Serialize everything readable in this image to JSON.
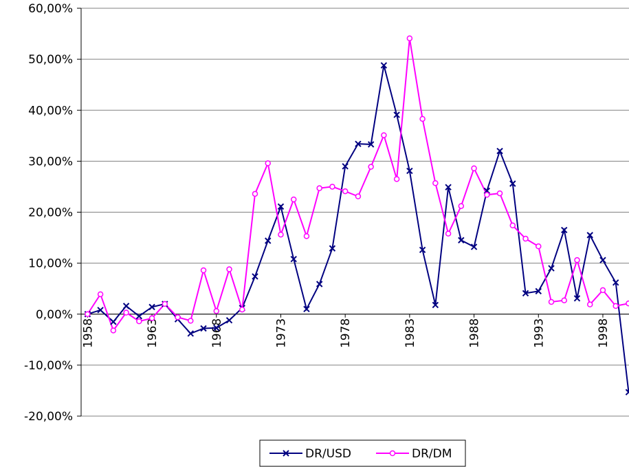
{
  "chart_data": {
    "type": "line",
    "x": [
      1958,
      1959,
      1960,
      1961,
      1962,
      1963,
      1964,
      1965,
      1966,
      1967,
      1968,
      1969,
      1970,
      1971,
      1972,
      1973,
      1974,
      1975,
      1976,
      1977,
      1978,
      1979,
      1980,
      1981,
      1982,
      1983,
      1984,
      1985,
      1986,
      1987,
      1988,
      1989,
      1990,
      1991,
      1992,
      1993,
      1994,
      1995,
      1996,
      1997,
      1998,
      1999,
      2000
    ],
    "xlim": [
      1957.5,
      2000.5
    ],
    "xticks": [
      1958,
      1963,
      1968,
      1973,
      1978,
      1983,
      1988,
      1993,
      1998
    ],
    "ylim": [
      -20,
      60
    ],
    "yticks": [
      {
        "value": -20,
        "label": "-20,00%"
      },
      {
        "value": -10,
        "label": "-10,00%"
      },
      {
        "value": 0,
        "label": "0,00%"
      },
      {
        "value": 10,
        "label": "10,00%"
      },
      {
        "value": 20,
        "label": "20,00%"
      },
      {
        "value": 30,
        "label": "30,00%"
      },
      {
        "value": 40,
        "label": "40,00%"
      },
      {
        "value": 50,
        "label": "50,00%"
      },
      {
        "value": 60,
        "label": "60,00%"
      }
    ],
    "grid": true,
    "legend": "bottom",
    "series": [
      {
        "name": "DR/USD",
        "color": "#000080",
        "marker": "x",
        "values": [
          0,
          0.8,
          -1.5,
          1.6,
          -0.4,
          1.4,
          2.0,
          -1.0,
          -3.8,
          -2.8,
          -2.7,
          -1.2,
          1.2,
          7.4,
          14.4,
          21.1,
          10.8,
          1.0,
          5.9,
          12.9,
          29.0,
          33.4,
          33.3,
          48.8,
          39.1,
          28.1,
          12.6,
          1.8,
          24.9,
          14.5,
          13.2,
          24.2,
          32.0,
          25.6,
          4.1,
          4.5,
          9.0,
          16.5,
          3.1,
          15.5,
          10.6,
          6.2,
          -15.3
        ]
      },
      {
        "name": "DR/DM",
        "color": "#ff00ff",
        "marker": "circle",
        "values": [
          0,
          3.9,
          -3.2,
          0.3,
          -1.4,
          -0.8,
          2.0,
          -0.6,
          -1.3,
          8.6,
          0.6,
          8.8,
          0.9,
          23.6,
          29.6,
          15.6,
          22.5,
          15.3,
          24.7,
          25.0,
          24.1,
          23.1,
          28.9,
          35.1,
          26.5,
          54.1,
          38.3,
          25.7,
          15.8,
          21.2,
          28.6,
          23.4,
          23.7,
          17.4,
          14.8,
          13.3,
          2.4,
          2.7,
          10.6,
          1.9,
          4.7,
          1.6,
          2.1
        ]
      }
    ]
  }
}
